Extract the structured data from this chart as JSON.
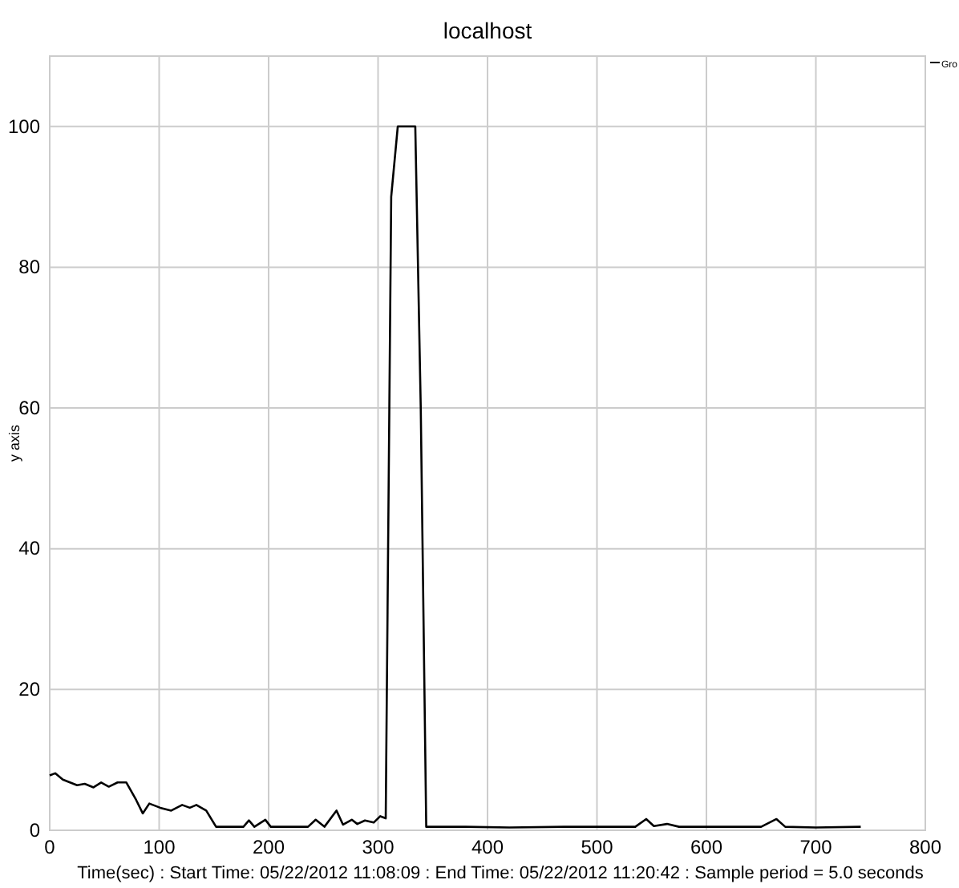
{
  "chart_data": {
    "type": "line",
    "title": "localhost",
    "xlabel": "Time(sec) : Start Time: 05/22/2012 11:08:09  :  End Time: 05/22/2012 11:20:42 : Sample period = 5.0 seconds",
    "ylabel": "y axis",
    "xlim": [
      0,
      800
    ],
    "xticks": [
      0,
      100,
      200,
      300,
      400,
      500,
      600,
      700,
      800
    ],
    "ylim": [
      0,
      110
    ],
    "yticks": [
      0,
      20,
      40,
      60,
      80,
      100
    ],
    "grid": true,
    "legend": "top right",
    "marker": "none",
    "line_style": "solid",
    "series": [
      {
        "name": "Gro",
        "color": "#000000",
        "x": [
          0,
          5,
          12,
          25,
          32,
          40,
          47,
          54,
          62,
          70,
          79,
          85,
          91,
          101,
          111,
          121,
          128,
          134,
          143,
          152,
          177,
          182,
          187,
          197,
          202,
          236,
          243,
          251,
          262,
          268,
          276,
          281,
          288,
          296,
          302,
          307,
          312,
          318,
          334,
          339,
          344,
          380,
          420,
          470,
          520,
          535,
          545,
          552,
          564,
          575,
          620,
          650,
          664,
          672,
          700,
          741
        ],
        "values": [
          7.8,
          8.1,
          7.2,
          6.4,
          6.6,
          6.1,
          6.8,
          6.2,
          6.8,
          6.8,
          4.3,
          2.4,
          3.8,
          3.2,
          2.8,
          3.6,
          3.2,
          3.6,
          2.8,
          0.5,
          0.5,
          1.4,
          0.5,
          1.5,
          0.5,
          0.5,
          1.5,
          0.5,
          2.8,
          0.8,
          1.5,
          0.9,
          1.4,
          1.1,
          2,
          1.7,
          90,
          100,
          100,
          60,
          0.5,
          0.5,
          0.4,
          0.5,
          0.5,
          0.5,
          1.6,
          0.6,
          0.9,
          0.5,
          0.5,
          0.5,
          1.6,
          0.5,
          0.4,
          0.5
        ]
      }
    ]
  }
}
